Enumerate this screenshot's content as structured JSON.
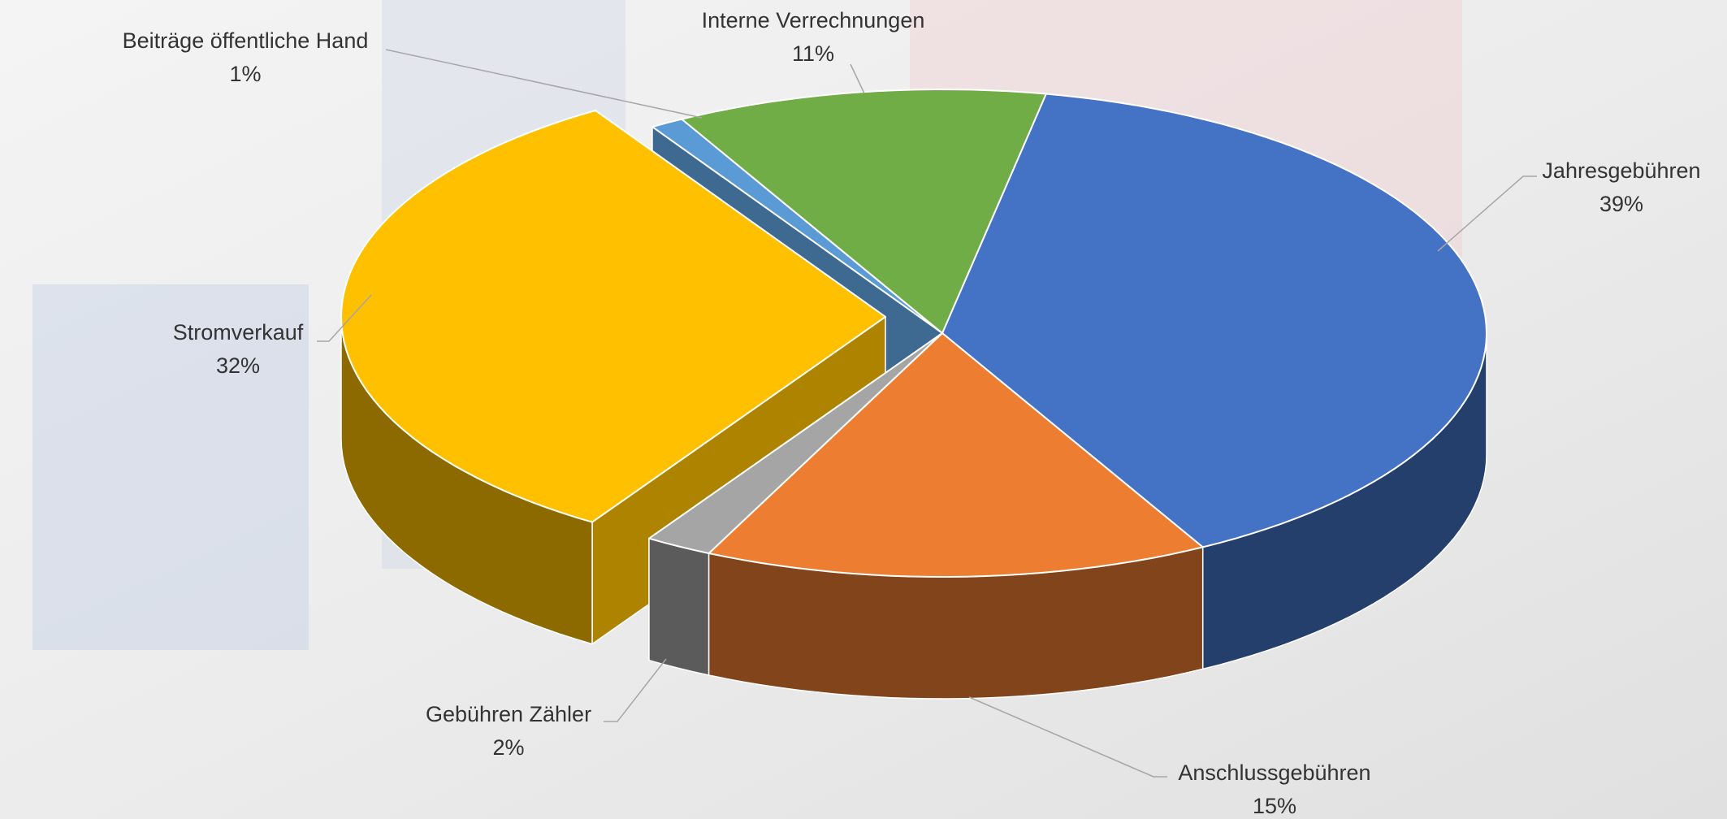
{
  "chart_data": {
    "type": "pie3d",
    "categories": [
      "Jahresgebühren",
      "Anschlussgebühren",
      "Gebühren Zähler",
      "Stromverkauf",
      "Beiträge öffentliche Hand",
      "Interne Verrechnungen"
    ],
    "values": [
      39,
      15,
      2,
      32,
      1,
      11
    ],
    "value_labels": [
      "39%",
      "15%",
      "2%",
      "32%",
      "1%",
      "11%"
    ],
    "colors": [
      "#4472c4",
      "#ed7d31",
      "#a5a5a5",
      "#ffc000",
      "#5b9bd5",
      "#70ad47"
    ],
    "exploded": "Stromverkauf"
  }
}
